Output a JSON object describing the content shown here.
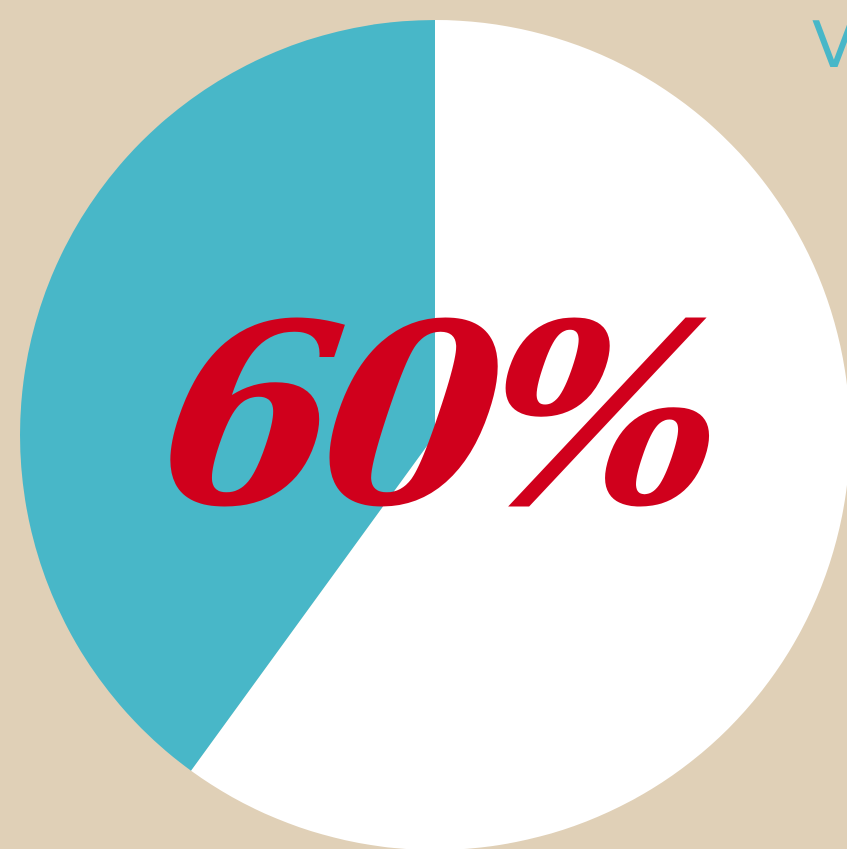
{
  "colors": {
    "background": "#E0D0B7",
    "accent": "#48B7C8",
    "remainder": "#FFFFFF",
    "label": "#D0001C"
  },
  "corner_text": "V",
  "chart_data": {
    "type": "pie",
    "title": "",
    "categories": [
      "",
      ""
    ],
    "values": [
      40,
      60
    ],
    "colors": [
      "#48B7C8",
      "#FFFFFF"
    ],
    "start": "top",
    "direction": "counterclockwise",
    "label": "60%"
  }
}
